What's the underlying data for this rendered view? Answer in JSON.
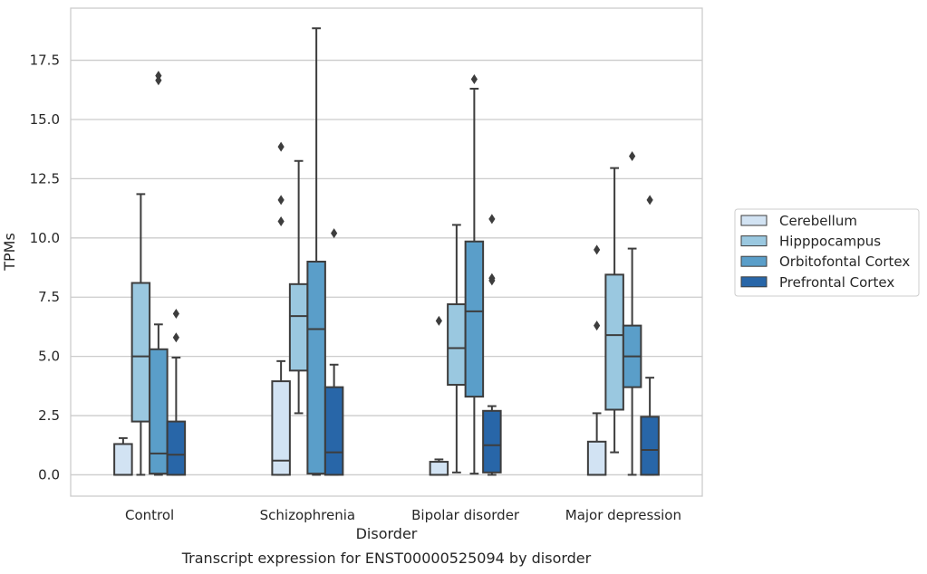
{
  "caption": "Transcript expression for ENST00000525094 by disorder",
  "chart_data": {
    "type": "box",
    "title": "",
    "xlabel": "Disorder",
    "ylabel": "TPMs",
    "ylim": [
      -0.9,
      19.7
    ],
    "yticks": [
      0.0,
      2.5,
      5.0,
      7.5,
      10.0,
      12.5,
      15.0,
      17.5
    ],
    "ytick_labels": [
      "0.0",
      "2.5",
      "5.0",
      "7.5",
      "10.0",
      "12.5",
      "15.0",
      "17.5"
    ],
    "grid": "horizontal",
    "legend_position": "right",
    "categories": [
      "Control",
      "Schizophrenia",
      "Bipolar disorder",
      "Major depression"
    ],
    "series": [
      {
        "name": "Cerebellum",
        "color": "#d2e3f3",
        "boxes": [
          {
            "whisker_low": 0.0,
            "q1": 0.0,
            "median": 0.0,
            "q3": 1.3,
            "whisker_high": 1.55,
            "outliers": []
          },
          {
            "whisker_low": 0.0,
            "q1": 0.0,
            "median": 0.6,
            "q3": 3.95,
            "whisker_high": 4.8,
            "outliers": [
              10.7,
              11.6,
              13.85
            ]
          },
          {
            "whisker_low": 0.0,
            "q1": 0.0,
            "median": 0.0,
            "q3": 0.55,
            "whisker_high": 0.65,
            "outliers": [
              6.5
            ]
          },
          {
            "whisker_low": 0.0,
            "q1": 0.0,
            "median": 0.0,
            "q3": 1.4,
            "whisker_high": 2.6,
            "outliers": [
              6.3,
              9.5
            ]
          }
        ]
      },
      {
        "name": "Hipppocampus",
        "color": "#9ac8e0",
        "boxes": [
          {
            "whisker_low": 0.0,
            "q1": 2.25,
            "median": 5.0,
            "q3": 8.1,
            "whisker_high": 11.85,
            "outliers": []
          },
          {
            "whisker_low": 2.6,
            "q1": 4.4,
            "median": 6.7,
            "q3": 8.05,
            "whisker_high": 13.25,
            "outliers": []
          },
          {
            "whisker_low": 0.1,
            "q1": 3.8,
            "median": 5.35,
            "q3": 7.2,
            "whisker_high": 10.55,
            "outliers": []
          },
          {
            "whisker_low": 0.95,
            "q1": 2.75,
            "median": 5.9,
            "q3": 8.45,
            "whisker_high": 12.95,
            "outliers": []
          }
        ]
      },
      {
        "name": "Orbitofontal Cortex",
        "color": "#5a9ec9",
        "boxes": [
          {
            "whisker_low": 0.0,
            "q1": 0.05,
            "median": 0.9,
            "q3": 5.3,
            "whisker_high": 6.35,
            "outliers": [
              16.65,
              16.85
            ]
          },
          {
            "whisker_low": 0.0,
            "q1": 0.05,
            "median": 6.15,
            "q3": 9.0,
            "whisker_high": 18.85,
            "outliers": []
          },
          {
            "whisker_low": 0.05,
            "q1": 3.3,
            "median": 6.9,
            "q3": 9.85,
            "whisker_high": 16.3,
            "outliers": [
              16.7
            ]
          },
          {
            "whisker_low": 0.0,
            "q1": 3.7,
            "median": 5.0,
            "q3": 6.3,
            "whisker_high": 9.55,
            "outliers": [
              13.45
            ]
          }
        ]
      },
      {
        "name": "Prefrontal Cortex",
        "color": "#2866a8",
        "boxes": [
          {
            "whisker_low": 0.0,
            "q1": 0.0,
            "median": 0.85,
            "q3": 2.25,
            "whisker_high": 4.95,
            "outliers": [
              5.8,
              6.8
            ]
          },
          {
            "whisker_low": 0.0,
            "q1": 0.0,
            "median": 0.95,
            "q3": 3.7,
            "whisker_high": 4.65,
            "outliers": [
              10.2
            ]
          },
          {
            "whisker_low": 0.0,
            "q1": 0.1,
            "median": 1.25,
            "q3": 2.7,
            "whisker_high": 2.9,
            "outliers": [
              8.2,
              8.3,
              10.8
            ]
          },
          {
            "whisker_low": 0.0,
            "q1": 0.0,
            "median": 1.05,
            "q3": 2.45,
            "whisker_high": 4.1,
            "outliers": [
              11.6
            ]
          }
        ]
      }
    ]
  }
}
